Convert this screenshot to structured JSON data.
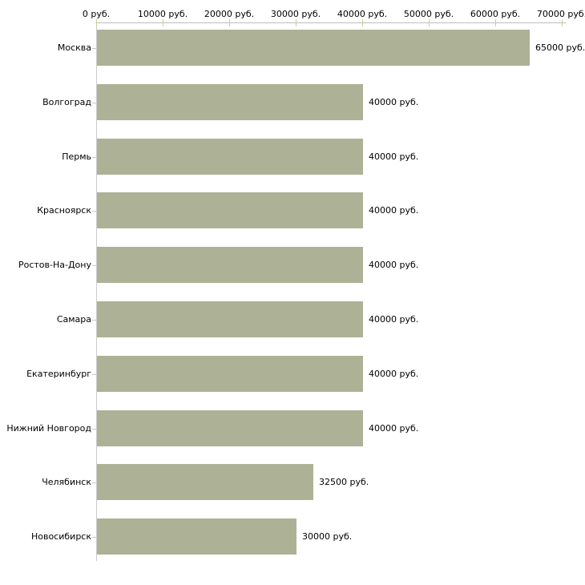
{
  "chart_data": {
    "type": "bar",
    "orientation": "horizontal",
    "title": "",
    "xlabel": "",
    "ylabel": "",
    "unit": "руб.",
    "categories": [
      "Москва",
      "Волгоград",
      "Пермь",
      "Красноярск",
      "Ростов-На-Дону",
      "Самара",
      "Екатеринбург",
      "Нижний Новгород",
      "Челябинск",
      "Новосибирск"
    ],
    "values": [
      65000,
      40000,
      40000,
      40000,
      40000,
      40000,
      40000,
      40000,
      32500,
      30000
    ],
    "bar_labels": [
      "65000 руб.",
      "40000 руб.",
      "40000 руб.",
      "40000 руб.",
      "40000 руб.",
      "40000 руб.",
      "40000 руб.",
      "40000 руб.",
      "32500 руб.",
      "30000 руб."
    ],
    "x_ticks": [
      0,
      10000,
      20000,
      30000,
      40000,
      50000,
      60000,
      70000
    ],
    "x_tick_labels": [
      "0 руб.",
      "10000 руб.",
      "20000 руб.",
      "30000 руб.",
      "40000 руб.",
      "50000 руб.",
      "60000 руб.",
      "70000 руб."
    ],
    "xlim": [
      0,
      70000
    ],
    "grid": false,
    "legend": false,
    "colors": {
      "bar": "#adb297",
      "x_axis_line": "#bdbdbd",
      "y_axis_line": "#cccccc",
      "x_tick": "#cccc99",
      "category_tick": "#c9c9b4",
      "text": "#000000",
      "background": "#ffffff"
    }
  }
}
